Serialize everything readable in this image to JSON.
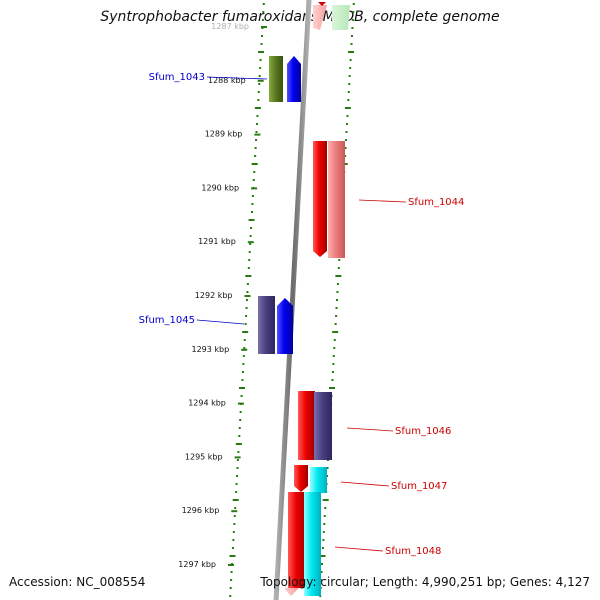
{
  "title": "Syntrophobacter fumaroxidans MPOB, complete genome",
  "accession": "Accession: NC_008554",
  "topology": "Topology: circular; Length: 4,990,251 bp; Genes: 4,127",
  "ticks": [
    "1287 kbp",
    "1288 kbp",
    "1289 kbp",
    "1290 kbp",
    "1291 kbp",
    "1292 kbp",
    "1293 kbp",
    "1294 kbp",
    "1295 kbp",
    "1296 kbp",
    "1297 kbp"
  ],
  "genes": [
    {
      "name": "Sfum_1043",
      "color": "#0000cc"
    },
    {
      "name": "Sfum_1044",
      "color": "#cc0000"
    },
    {
      "name": "Sfum_1045",
      "color": "#0000cc"
    },
    {
      "name": "Sfum_1046",
      "color": "#cc0000"
    },
    {
      "name": "Sfum_1047",
      "color": "#cc0000"
    },
    {
      "name": "Sfum_1048",
      "color": "#cc0000"
    }
  ],
  "colors": {
    "backbone": "#808080",
    "gc_ticks": "#2a7a14",
    "feature_red": "#ee0000",
    "feature_pink": "#f08080",
    "feature_blue": "#0000ee",
    "feature_slate": "#4a4080",
    "feature_olive": "#5a7a20",
    "feature_cyan": "#00e8f0"
  }
}
